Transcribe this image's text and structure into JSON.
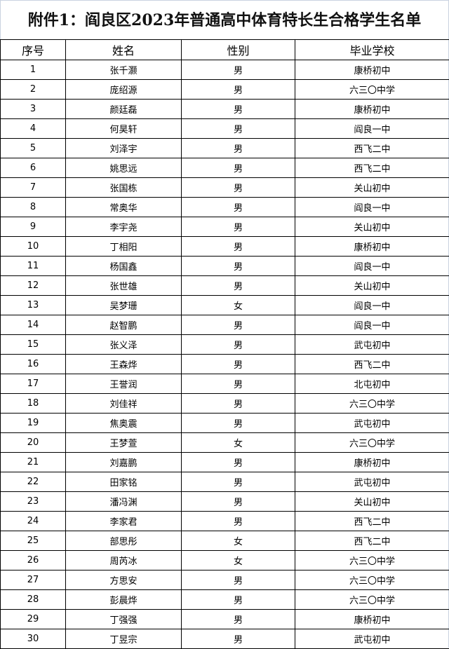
{
  "title": "附件1：阎良区2023年普通高中体育特长生合格学生名单",
  "headers": [
    "序号",
    "姓名",
    "性别",
    "毕业学校"
  ],
  "rows": [
    [
      "1",
      "张千灏",
      "男",
      "康桥初中"
    ],
    [
      "2",
      "庞绍源",
      "男",
      "六三〇中学"
    ],
    [
      "3",
      "颜廷磊",
      "男",
      "康桥初中"
    ],
    [
      "4",
      "何昊轩",
      "男",
      "阎良一中"
    ],
    [
      "5",
      "刘泽宇",
      "男",
      "西飞二中"
    ],
    [
      "6",
      "姚思远",
      "男",
      "西飞二中"
    ],
    [
      "7",
      "张国栋",
      "男",
      "关山初中"
    ],
    [
      "8",
      "常奥华",
      "男",
      "阎良一中"
    ],
    [
      "9",
      "李宇尧",
      "男",
      "关山初中"
    ],
    [
      "10",
      "丁相阳",
      "男",
      "康桥初中"
    ],
    [
      "11",
      "杨国鑫",
      "男",
      "阎良一中"
    ],
    [
      "12",
      "张世雄",
      "男",
      "关山初中"
    ],
    [
      "13",
      "吴梦珊",
      "女",
      "阎良一中"
    ],
    [
      "14",
      "赵智鹏",
      "男",
      "阎良一中"
    ],
    [
      "15",
      "张义泽",
      "男",
      "武屯初中"
    ],
    [
      "16",
      "王森烨",
      "男",
      "西飞二中"
    ],
    [
      "17",
      "王誉润",
      "男",
      "北屯初中"
    ],
    [
      "18",
      "刘佳祥",
      "男",
      "六三〇中学"
    ],
    [
      "19",
      "焦奥震",
      "男",
      "武屯初中"
    ],
    [
      "20",
      "王梦萱",
      "女",
      "六三〇中学"
    ],
    [
      "21",
      "刘嘉鹏",
      "男",
      "康桥初中"
    ],
    [
      "22",
      "田家铭",
      "男",
      "武屯初中"
    ],
    [
      "23",
      "潘冯渊",
      "男",
      "关山初中"
    ],
    [
      "24",
      "李家君",
      "男",
      "西飞二中"
    ],
    [
      "25",
      "部思彤",
      "女",
      "西飞二中"
    ],
    [
      "26",
      "周芮冰",
      "女",
      "六三〇中学"
    ],
    [
      "27",
      "方思安",
      "男",
      "六三〇中学"
    ],
    [
      "28",
      "彭晨烨",
      "男",
      "六三〇中学"
    ],
    [
      "29",
      "丁强强",
      "男",
      "康桥初中"
    ],
    [
      "30",
      "丁昱宗",
      "男",
      "武屯初中"
    ]
  ]
}
